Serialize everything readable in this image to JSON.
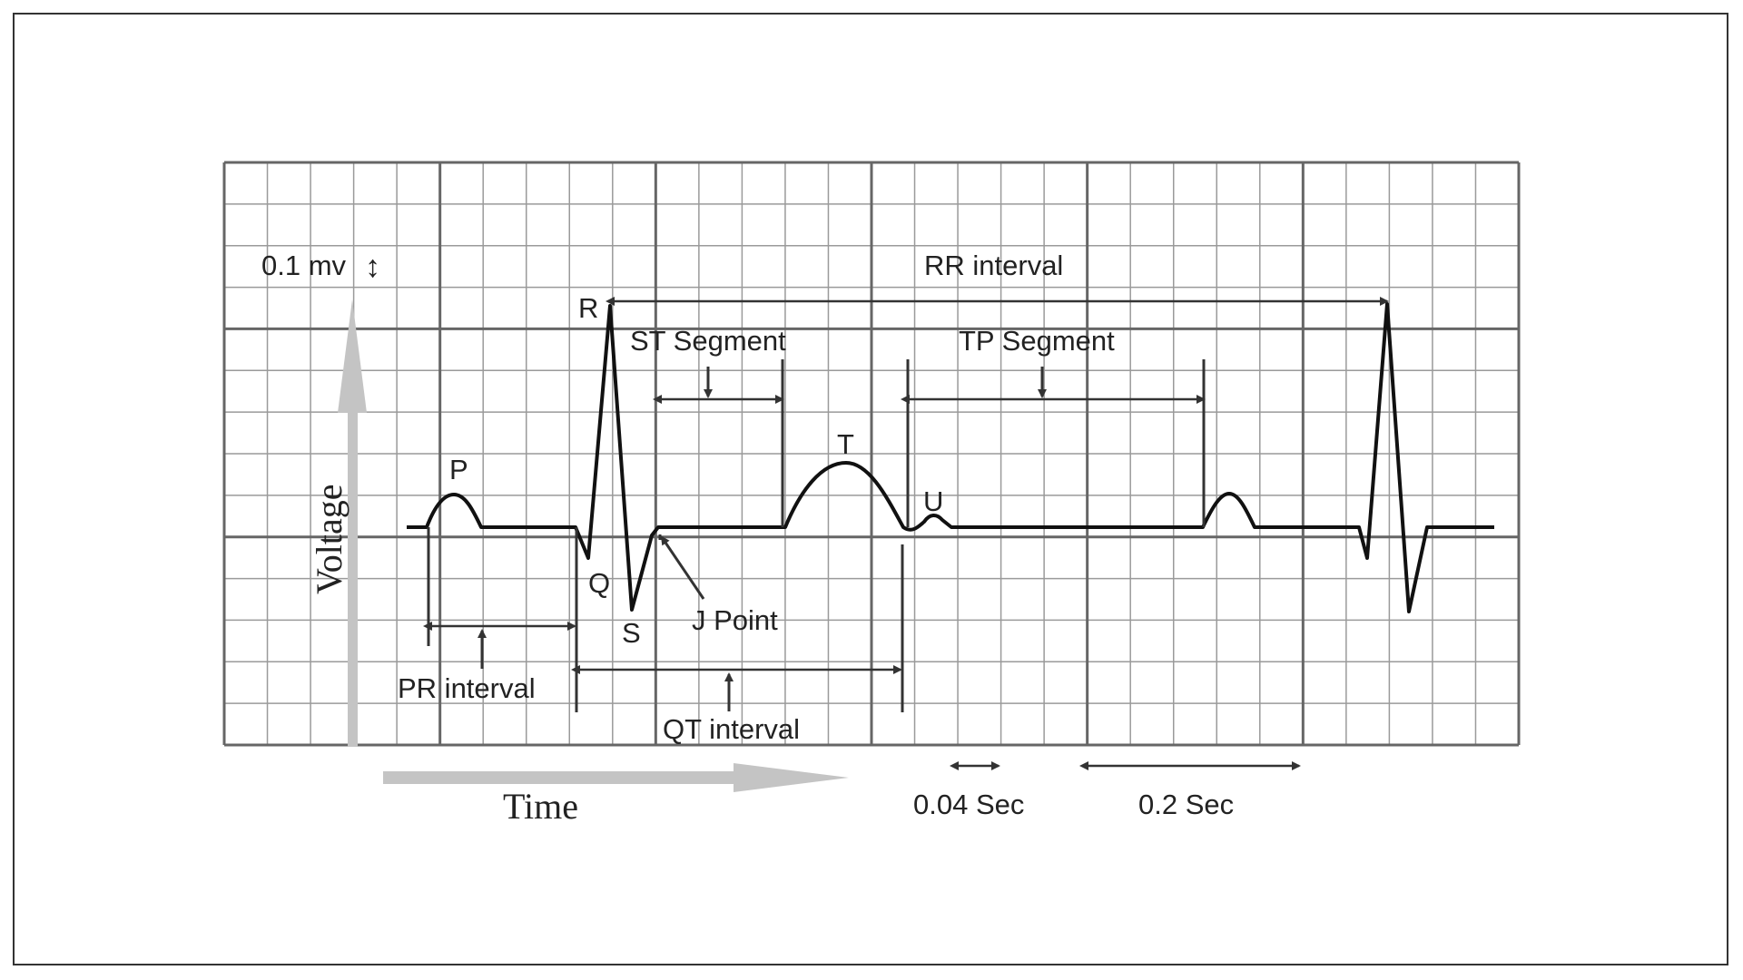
{
  "colors": {
    "minor_grid": "#9a9a9a",
    "major_grid": "#666666",
    "trace": "#111111",
    "axis_arrow": "#c4c4c4",
    "annotation": "#333333"
  },
  "labels": {
    "scale_voltage": "0.1 mv",
    "scale_arrow_glyph": "↕",
    "R": "R",
    "P": "P",
    "Q": "Q",
    "S": "S",
    "T": "T",
    "U": "U",
    "st_segment": "ST Segment",
    "tp_segment": "TP Segment",
    "rr_interval": "RR interval",
    "j_point": "J Point",
    "pr_interval": "PR interval",
    "qt_interval": "QT interval",
    "axis_voltage": "Voltage",
    "axis_time": "Time",
    "scale_small": "0.04 Sec",
    "scale_large": "0.2 Sec"
  }
}
